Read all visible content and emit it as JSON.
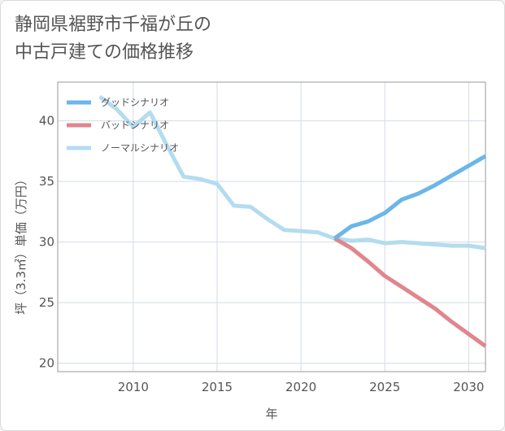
{
  "title": {
    "line1": "静岡県裾野市千福が丘の",
    "line2": "中古戸建ての価格推移"
  },
  "colors": {
    "good": "#6cb6e8",
    "bad": "#e0868e",
    "normal": "#b4dcef",
    "grid": "#d2dce6",
    "axis": "#555555"
  },
  "chart_data": {
    "type": "line",
    "xlabel": "年",
    "ylabel": "坪（3.3㎡）単価（万円）",
    "xlim": [
      2005.5,
      2031
    ],
    "ylim": [
      19.3,
      43.2
    ],
    "xticks": [
      2010,
      2015,
      2020,
      2025,
      2030
    ],
    "yticks": [
      20,
      25,
      30,
      35,
      40
    ],
    "grid": true,
    "legend_position": "top-left",
    "series": [
      {
        "name": "グッドシナリオ",
        "color": "#6cb6e8",
        "x": [
          2022,
          2023,
          2024,
          2025,
          2026,
          2027,
          2028,
          2029,
          2030,
          2031
        ],
        "y": [
          30.3,
          31.3,
          31.7,
          32.4,
          33.5,
          34.0,
          34.7,
          35.5,
          36.3,
          37.1
        ]
      },
      {
        "name": "バッドシナリオ",
        "color": "#e0868e",
        "x": [
          2022,
          2023,
          2024,
          2025,
          2026,
          2027,
          2028,
          2029,
          2030,
          2031
        ],
        "y": [
          30.3,
          29.5,
          28.4,
          27.2,
          26.3,
          25.4,
          24.5,
          23.4,
          22.4,
          21.4
        ]
      },
      {
        "name": "ノーマルシナリオ",
        "color": "#b4dcef",
        "x": [
          2008,
          2009,
          2010,
          2011,
          2012,
          2013,
          2014,
          2015,
          2016,
          2017,
          2018,
          2019,
          2020,
          2021,
          2022,
          2023,
          2024,
          2025,
          2026,
          2027,
          2028,
          2029,
          2030,
          2031
        ],
        "y": [
          42.0,
          41.0,
          39.5,
          40.7,
          38.0,
          35.4,
          35.2,
          34.8,
          33.0,
          32.9,
          31.9,
          31.0,
          30.9,
          30.8,
          30.3,
          30.1,
          30.2,
          29.9,
          30.0,
          29.9,
          29.8,
          29.7,
          29.7,
          29.5
        ]
      }
    ]
  }
}
